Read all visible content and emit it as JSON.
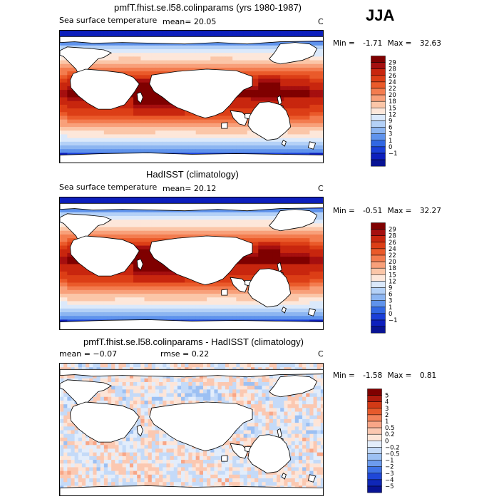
{
  "season": "JJA",
  "panels": [
    {
      "title": "pmfT.fhist.se.l58.colinparams (yrs 1980-1987)",
      "left_label": "Sea surface temperature",
      "stat_text": "mean=   20.05",
      "units": "C",
      "min_label": "Min =",
      "min_value": "-1.71",
      "max_label": "Max =",
      "max_value": "32.63",
      "type": "abs",
      "colorbar": {
        "labels": [
          "29",
          "28",
          "26",
          "24",
          "22",
          "20",
          "18",
          "15",
          "12",
          "9",
          "6",
          "3",
          "1",
          "0",
          "−1"
        ],
        "colors": [
          "#7f0000",
          "#a50f0f",
          "#c8260e",
          "#dc3e16",
          "#ea5a2a",
          "#f37c4f",
          "#f8a07a",
          "#fbc6a8",
          "#fde7da",
          "#dbe9fb",
          "#b4d1f7",
          "#8cb5f1",
          "#5f93ec",
          "#3167e3",
          "#1a3fd8",
          "#0d1fbd",
          "#081394"
        ]
      }
    },
    {
      "title": "HadISST (climatology)",
      "left_label": "Sea surface temperature",
      "stat_text": "mean=   20.12",
      "units": "C",
      "min_label": "Min =",
      "min_value": "-0.51",
      "max_label": "Max =",
      "max_value": "32.27",
      "type": "abs",
      "colorbar": {
        "labels": [
          "29",
          "28",
          "26",
          "24",
          "22",
          "20",
          "18",
          "15",
          "12",
          "9",
          "6",
          "3",
          "1",
          "0",
          "−1"
        ],
        "colors": [
          "#7f0000",
          "#a50f0f",
          "#c8260e",
          "#dc3e16",
          "#ea5a2a",
          "#f37c4f",
          "#f8a07a",
          "#fbc6a8",
          "#fde7da",
          "#dbe9fb",
          "#b4d1f7",
          "#8cb5f1",
          "#5f93ec",
          "#3167e3",
          "#1a3fd8",
          "#0d1fbd",
          "#081394"
        ]
      }
    },
    {
      "title": "pmfT.fhist.se.l58.colinparams - HadISST (climatology)",
      "left_label": "mean =   −0.07",
      "stat_text": "rmse =    0.22",
      "units": "C",
      "min_label": "Min =",
      "min_value": "-1.58",
      "max_label": "Max =",
      "max_value": "0.81",
      "type": "diff",
      "colorbar": {
        "labels": [
          "5",
          "4",
          "3",
          "2",
          "1",
          "0.5",
          "0.2",
          "0",
          "−0.2",
          "−0.5",
          "−1",
          "−2",
          "−3",
          "−4",
          "−5"
        ],
        "colors": [
          "#7f0000",
          "#b01b0e",
          "#d23a16",
          "#e65a2c",
          "#f2825a",
          "#f8a687",
          "#fbc8b1",
          "#fde5d8",
          "#e3edfb",
          "#c4daf8",
          "#9cc0f3",
          "#6d9cee",
          "#3f72e6",
          "#1f47d8",
          "#0f27b8",
          "#081394"
        ]
      }
    }
  ]
}
